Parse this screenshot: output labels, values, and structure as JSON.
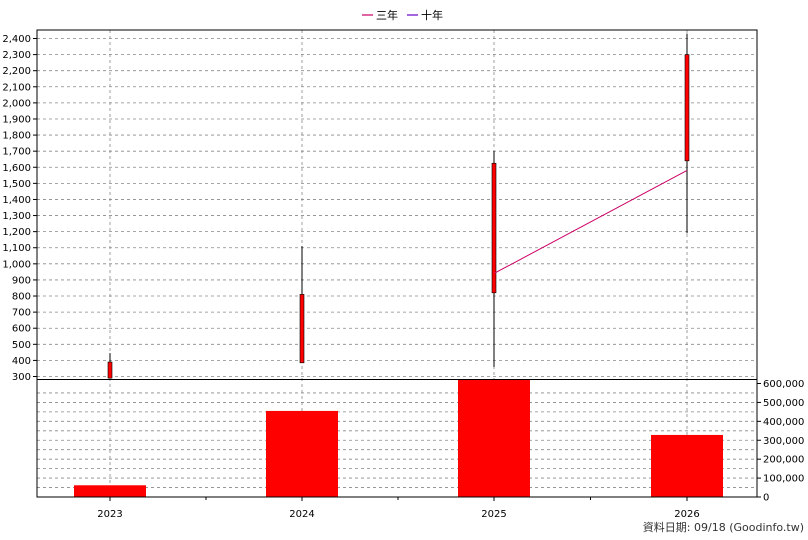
{
  "chart_data": {
    "type": "candlestick-with-volume",
    "categories": [
      "2023",
      "2024",
      "2025",
      "2026"
    ],
    "legend": [
      {
        "name": "三年",
        "color": "#cc0066"
      },
      {
        "name": "十年",
        "color": "#6600cc"
      }
    ],
    "candles": [
      {
        "x": "2023",
        "open": 290,
        "close": 390,
        "high": 445,
        "low": 290
      },
      {
        "x": "2024",
        "open": 385,
        "close": 810,
        "high": 1110,
        "low": 385
      },
      {
        "x": "2025",
        "open": 820,
        "close": 1625,
        "high": 1700,
        "low": 360
      },
      {
        "x": "2026",
        "open": 1640,
        "close": 2300,
        "high": 2430,
        "low": 1190
      }
    ],
    "three_year_avg": [
      {
        "x": "2025",
        "y": 940
      },
      {
        "x": "2026",
        "y": 1580
      }
    ],
    "ten_year_avg": [],
    "volume": [
      {
        "x": "2023",
        "value": 62000
      },
      {
        "x": "2024",
        "value": 455000
      },
      {
        "x": "2025",
        "value": 620000
      },
      {
        "x": "2026",
        "value": 328000
      }
    ],
    "price_axis": {
      "min": 300,
      "max": 2400,
      "ticks": [
        "300",
        "400",
        "500",
        "600",
        "700",
        "800",
        "900",
        "1,000",
        "1,100",
        "1,200",
        "1,300",
        "1,400",
        "1,500",
        "1,600",
        "1,700",
        "1,800",
        "1,900",
        "2,000",
        "2,100",
        "2,200",
        "2,300",
        "2,400"
      ]
    },
    "volume_axis": {
      "min": 0,
      "max": 600000,
      "ticks": [
        "0",
        "100,000",
        "200,000",
        "300,000",
        "400,000",
        "500,000",
        "600,000"
      ]
    },
    "colors": {
      "candle": "#ff0000",
      "volume": "#ff0000",
      "wick": "#000000",
      "grid": "#888888"
    }
  },
  "footer": "資料日期: 09/18  (Goodinfo.tw)"
}
